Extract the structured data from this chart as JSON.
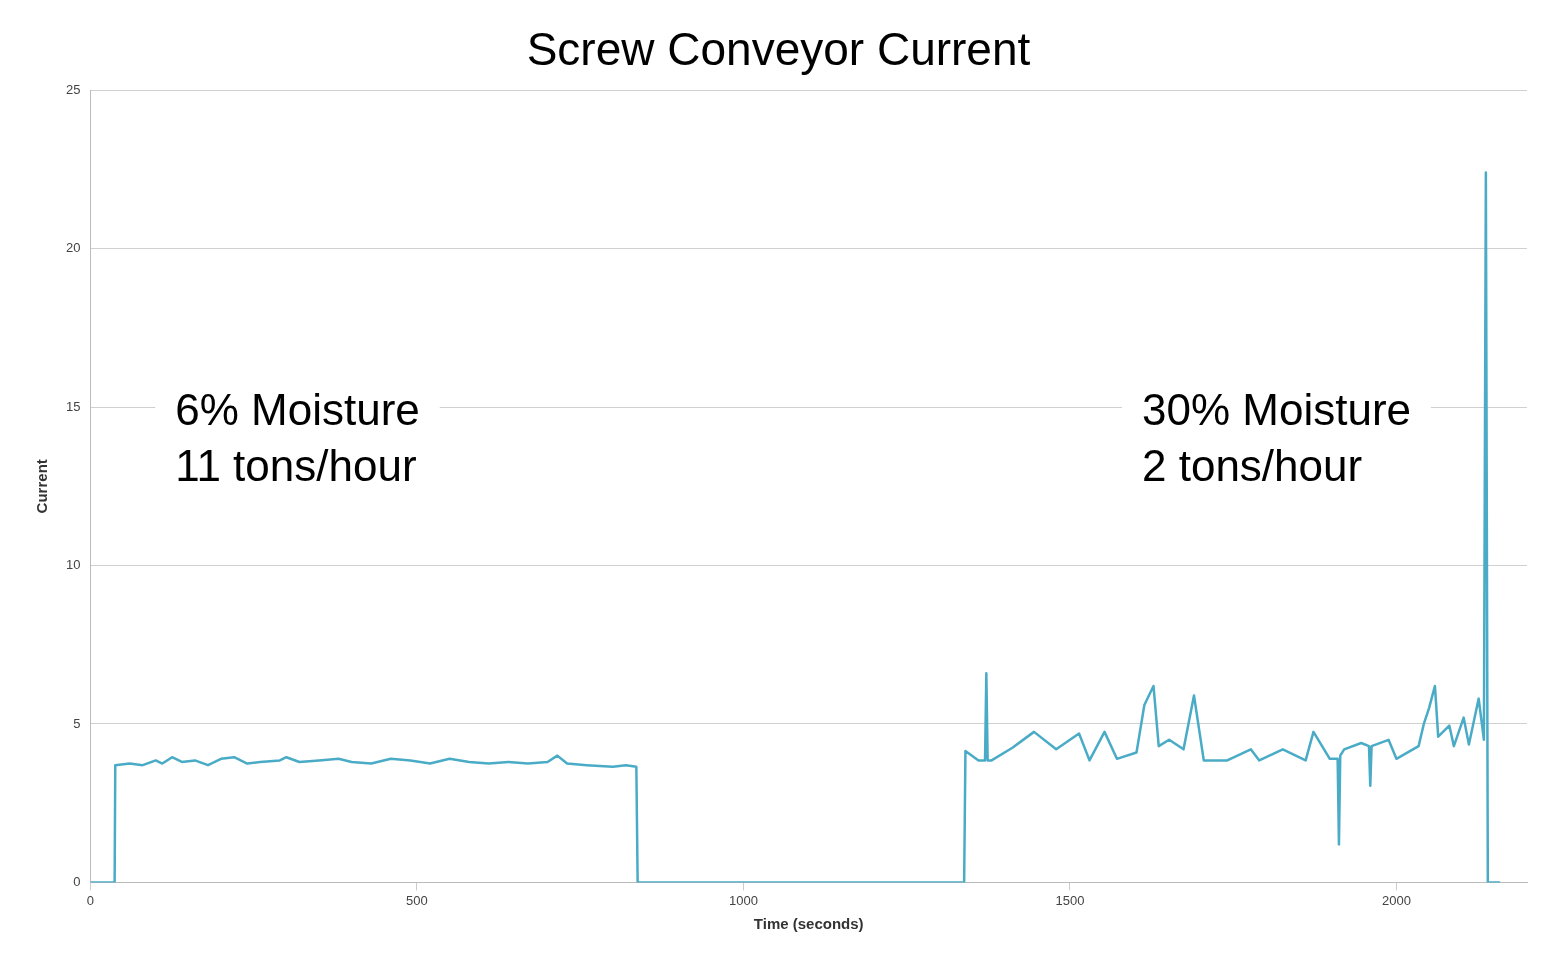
{
  "chart_data": {
    "type": "line",
    "title": "Screw Conveyor Current",
    "xlabel": "Time (seconds)",
    "ylabel": "Current",
    "xlim": [
      0,
      2200
    ],
    "xticks": [
      0,
      500,
      1000,
      1500,
      2000
    ],
    "ylim": [
      0,
      25
    ],
    "yticks": [
      0,
      5,
      10,
      15,
      20,
      25
    ],
    "grid": "y",
    "legend": false,
    "marker": "none",
    "annotations": [
      "6% Moisture\n11 tons/hour",
      "30% Moisture\n2 tons/hour"
    ],
    "series": [
      {
        "color": "#4aabc6",
        "x": [
          0,
          37,
          38,
          60,
          80,
          100,
          110,
          125,
          140,
          160,
          180,
          200,
          220,
          240,
          260,
          290,
          300,
          320,
          350,
          380,
          400,
          430,
          460,
          490,
          520,
          550,
          580,
          610,
          640,
          670,
          700,
          715,
          730,
          760,
          800,
          820,
          836,
          838,
          1338,
          1340,
          1360,
          1370,
          1372,
          1374,
          1380,
          1412,
          1445,
          1479,
          1514,
          1530,
          1553,
          1572,
          1602,
          1614,
          1628,
          1636,
          1652,
          1674,
          1690,
          1705,
          1741,
          1777,
          1790,
          1826,
          1861,
          1873,
          1898,
          1910,
          1912,
          1914,
          1920,
          1946,
          1958,
          1960,
          1962,
          1988,
          2000,
          2034,
          2042,
          2050,
          2059,
          2064,
          2081,
          2088,
          2103,
          2111,
          2126,
          2134,
          2137,
          2140,
          2159
        ],
        "values": [
          0,
          0,
          3.7,
          3.75,
          3.7,
          3.85,
          3.75,
          3.95,
          3.8,
          3.85,
          3.7,
          3.9,
          3.95,
          3.75,
          3.8,
          3.85,
          3.95,
          3.8,
          3.85,
          3.9,
          3.8,
          3.75,
          3.9,
          3.85,
          3.75,
          3.9,
          3.8,
          3.75,
          3.8,
          3.75,
          3.8,
          4.0,
          3.75,
          3.7,
          3.65,
          3.7,
          3.65,
          0,
          0,
          4.15,
          3.85,
          3.85,
          6.6,
          3.85,
          3.85,
          4.25,
          4.75,
          4.2,
          4.7,
          3.85,
          4.75,
          3.9,
          4.1,
          5.6,
          6.2,
          4.3,
          4.5,
          4.2,
          5.9,
          3.85,
          3.85,
          4.2,
          3.85,
          4.2,
          3.85,
          4.75,
          3.9,
          3.9,
          1.2,
          4.0,
          4.2,
          4.4,
          4.3,
          3.05,
          4.3,
          4.5,
          3.9,
          4.3,
          5.0,
          5.5,
          6.2,
          4.6,
          4.95,
          4.3,
          5.2,
          4.35,
          5.8,
          4.5,
          22.4,
          0,
          0
        ]
      }
    ]
  }
}
